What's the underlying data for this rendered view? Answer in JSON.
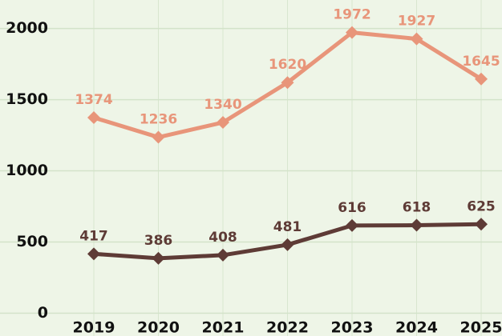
{
  "chart_data": {
    "type": "line",
    "categories": [
      "2019",
      "2020",
      "2021",
      "2022",
      "2023",
      "2024",
      "2025"
    ],
    "series": [
      {
        "color": "#e8957a",
        "values": [
          1374,
          1236,
          1340,
          1620,
          1972,
          1927,
          1645
        ]
      },
      {
        "color": "#5e3b36",
        "values": [
          417,
          386,
          408,
          481,
          616,
          618,
          625
        ]
      }
    ],
    "ylim": [
      -160,
      2200
    ],
    "yticks": [
      0,
      500,
      1000,
      1500,
      2000
    ],
    "grid": true
  }
}
